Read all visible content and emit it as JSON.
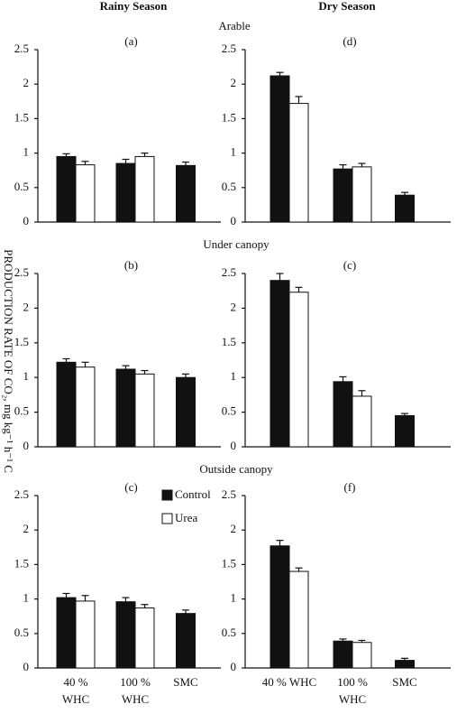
{
  "column_titles": [
    "Rainy Season",
    "Dry Season"
  ],
  "row_titles": [
    "Arable",
    "Under canopy",
    "Outside canopy"
  ],
  "y_axis_label": "PRODUCTION RATE OF CO₂, mg kg⁻¹ h⁻¹ C",
  "chart_data": [
    {
      "type": "bar",
      "title": "(a)",
      "categories": [
        null,
        null,
        null
      ],
      "ylim": [
        0,
        2.5
      ],
      "yticks": [
        0,
        0.5,
        1,
        1.5,
        2,
        2.5
      ],
      "series": [
        {
          "color": "#111111",
          "values": [
            0.95,
            0.85,
            0.82
          ],
          "errors": [
            0.04,
            0.06,
            0.05
          ]
        },
        {
          "color": "#ffffff",
          "values": [
            0.83,
            0.95,
            null
          ],
          "errors": [
            0.05,
            0.05,
            null
          ]
        }
      ]
    },
    {
      "type": "bar",
      "title": "(d)",
      "categories": [
        null,
        null,
        null
      ],
      "ylim": [
        0,
        2.5
      ],
      "yticks": [
        0,
        0.5,
        1,
        1.5,
        2,
        2.5
      ],
      "series": [
        {
          "color": "#111111",
          "values": [
            2.12,
            0.77,
            0.39
          ],
          "errors": [
            0.05,
            0.06,
            0.04
          ]
        },
        {
          "color": "#ffffff",
          "values": [
            1.72,
            0.8,
            null
          ],
          "errors": [
            0.1,
            0.05,
            null
          ]
        }
      ]
    },
    {
      "type": "bar",
      "title": "(b)",
      "categories": [
        null,
        null,
        null
      ],
      "ylim": [
        0,
        2.5
      ],
      "yticks": [
        0,
        0.5,
        1,
        1.5,
        2,
        2.5
      ],
      "series": [
        {
          "color": "#111111",
          "values": [
            1.22,
            1.12,
            1.0
          ],
          "errors": [
            0.05,
            0.05,
            0.05
          ]
        },
        {
          "color": "#ffffff",
          "values": [
            1.15,
            1.05,
            null
          ],
          "errors": [
            0.07,
            0.05,
            null
          ]
        }
      ]
    },
    {
      "type": "bar",
      "title": "(c)",
      "categories": [
        null,
        null,
        null
      ],
      "ylim": [
        0,
        2.5
      ],
      "yticks": [
        0,
        0.5,
        1,
        1.5,
        2,
        2.5
      ],
      "series": [
        {
          "color": "#111111",
          "values": [
            2.4,
            0.94,
            0.45
          ],
          "errors": [
            0.1,
            0.07,
            0.03
          ]
        },
        {
          "color": "#ffffff",
          "values": [
            2.23,
            0.73,
            null
          ],
          "errors": [
            0.07,
            0.08,
            null
          ]
        }
      ]
    },
    {
      "type": "bar",
      "title": "(c)",
      "categories": [
        "40 %\nWHC",
        "100 %\nWHC",
        "SMC"
      ],
      "ylim": [
        0,
        2.5
      ],
      "yticks": [
        0,
        0.5,
        1,
        1.5,
        2,
        2.5
      ],
      "legend": true,
      "series": [
        {
          "name": "Control",
          "color": "#111111",
          "values": [
            1.02,
            0.96,
            0.79
          ],
          "errors": [
            0.06,
            0.06,
            0.05
          ]
        },
        {
          "name": "Urea",
          "color": "#ffffff",
          "values": [
            0.97,
            0.87,
            null
          ],
          "errors": [
            0.08,
            0.05,
            null
          ]
        }
      ]
    },
    {
      "type": "bar",
      "title": "(f)",
      "categories": [
        "40 % WHC",
        "100 %\nWHC",
        "SMC"
      ],
      "ylim": [
        0,
        2.5
      ],
      "yticks": [
        0,
        0.5,
        1,
        1.5,
        2,
        2.5
      ],
      "series": [
        {
          "color": "#111111",
          "values": [
            1.77,
            0.39,
            0.11
          ],
          "errors": [
            0.08,
            0.03,
            0.03
          ]
        },
        {
          "color": "#ffffff",
          "values": [
            1.4,
            0.37,
            null
          ],
          "errors": [
            0.05,
            0.03,
            null
          ]
        }
      ]
    }
  ]
}
